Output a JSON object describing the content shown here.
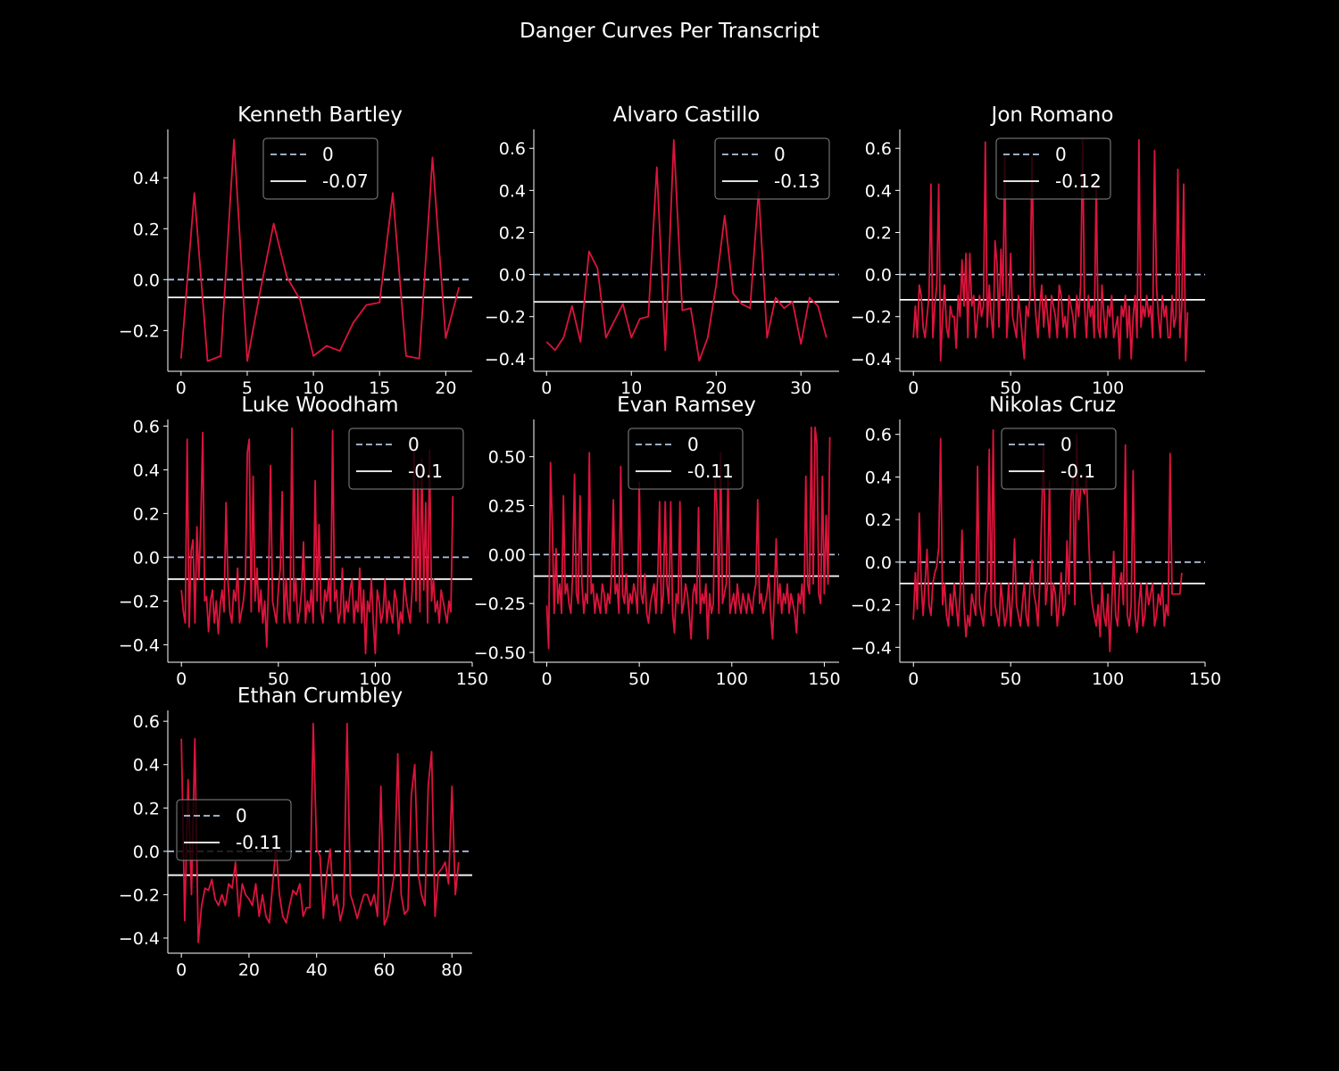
{
  "figure_title": "Danger Curves Per Transcript",
  "colors": {
    "background": "#000000",
    "series": "#dc143c",
    "zero_line": "#b0c4de",
    "mean_line": "#ffffff",
    "axis": "#ffffff",
    "legend_border": "#888888"
  },
  "chart_data": [
    {
      "type": "line",
      "title": "Kenneth Bartley",
      "xlim": [
        -1,
        22
      ],
      "ylim": [
        -0.36,
        0.59
      ],
      "xticks": [
        0,
        5,
        10,
        15,
        20
      ],
      "yticks": [
        -0.2,
        0.0,
        0.2,
        0.4
      ],
      "ytick_labels": [
        "−0.2",
        "0.0",
        "0.2",
        "0.4"
      ],
      "reference_lines": [
        {
          "label": "0",
          "y": 0,
          "style": "dashed"
        },
        {
          "label": "-0.07",
          "y": -0.07,
          "style": "solid"
        }
      ],
      "legend_position": "upper center",
      "series": [
        {
          "values": [
            -0.31,
            0.34,
            -0.32,
            -0.3,
            0.55,
            -0.32,
            -0.04,
            0.22,
            0.01,
            -0.08,
            -0.3,
            -0.26,
            -0.28,
            -0.17,
            -0.1,
            -0.09,
            0.34,
            -0.3,
            -0.31,
            0.48,
            -0.23,
            -0.03
          ]
        }
      ]
    },
    {
      "type": "line",
      "title": "Alvaro Castillo",
      "xlim": [
        -1.5,
        34.5
      ],
      "ylim": [
        -0.46,
        0.69
      ],
      "xticks": [
        0,
        10,
        20,
        30
      ],
      "yticks": [
        -0.4,
        -0.2,
        0.0,
        0.2,
        0.4,
        0.6
      ],
      "ytick_labels": [
        "−0.4",
        "−0.2",
        "0.0",
        "0.2",
        "0.4",
        "0.6"
      ],
      "reference_lines": [
        {
          "label": "0",
          "y": 0,
          "style": "dashed"
        },
        {
          "label": "-0.13",
          "y": -0.13,
          "style": "solid"
        }
      ],
      "legend_position": "upper right",
      "series": [
        {
          "values": [
            -0.32,
            -0.36,
            -0.3,
            -0.15,
            -0.32,
            0.11,
            0.03,
            -0.3,
            -0.22,
            -0.14,
            -0.3,
            -0.21,
            -0.2,
            0.51,
            -0.36,
            0.64,
            -0.17,
            -0.16,
            -0.41,
            -0.3,
            -0.05,
            0.28,
            -0.09,
            -0.14,
            -0.16,
            0.4,
            -0.3,
            -0.11,
            -0.16,
            -0.13,
            -0.33,
            -0.11,
            -0.15,
            -0.3
          ]
        }
      ]
    },
    {
      "type": "line",
      "title": "Jon Romano",
      "xlim": [
        -7,
        150
      ],
      "ylim": [
        -0.46,
        0.69
      ],
      "xticks": [
        0,
        50,
        100
      ],
      "yticks": [
        -0.4,
        -0.2,
        0.0,
        0.2,
        0.4,
        0.6
      ],
      "ytick_labels": [
        "−0.4",
        "−0.2",
        "0.0",
        "0.2",
        "0.4",
        "0.6"
      ],
      "reference_lines": [
        {
          "label": "0",
          "y": 0,
          "style": "dashed"
        },
        {
          "label": "-0.12",
          "y": -0.12,
          "style": "solid"
        }
      ],
      "legend_position": "upper left",
      "series": [
        {
          "values": [
            -0.3,
            -0.15,
            -0.3,
            -0.05,
            -0.1,
            -0.25,
            -0.3,
            -0.2,
            -0.1,
            0.43,
            -0.3,
            -0.15,
            -0.05,
            0.43,
            -0.41,
            -0.2,
            -0.05,
            -0.25,
            -0.3,
            -0.15,
            -0.2,
            -0.2,
            -0.35,
            -0.1,
            -0.2,
            0.07,
            -0.15,
            0.1,
            -0.3,
            0.1,
            -0.15,
            -0.1,
            -0.3,
            -0.2,
            -0.1,
            -0.2,
            -0.15,
            0.63,
            -0.25,
            -0.05,
            -0.2,
            -0.3,
            0.16,
            0.05,
            -0.25,
            0.12,
            -0.1,
            0.57,
            -0.3,
            -0.15,
            0.1,
            -0.2,
            -0.25,
            -0.3,
            -0.1,
            -0.2,
            -0.3,
            -0.4,
            -0.15,
            -0.2,
            -0.1,
            0.56,
            -0.05,
            -0.2,
            -0.3,
            -0.15,
            -0.05,
            -0.25,
            -0.1,
            -0.2,
            -0.3,
            -0.1,
            -0.15,
            -0.2,
            -0.3,
            -0.05,
            -0.1,
            -0.25,
            -0.2,
            -0.3,
            -0.1,
            -0.15,
            -0.2,
            -0.3,
            -0.1,
            -0.2,
            -0.05,
            0.64,
            -0.15,
            -0.3,
            -0.1,
            -0.2,
            -0.15,
            -0.3,
            0.43,
            -0.25,
            -0.3,
            -0.05,
            -0.2,
            -0.3,
            -0.15,
            -0.2,
            -0.1,
            -0.3,
            -0.25,
            -0.2,
            -0.4,
            -0.15,
            -0.2,
            -0.1,
            -0.3,
            -0.15,
            -0.4,
            -0.2,
            -0.1,
            -0.3,
            0.64,
            -0.25,
            -0.15,
            -0.2,
            -0.1,
            -0.2,
            -0.15,
            -0.3,
            0.59,
            -0.05,
            -0.2,
            -0.3,
            -0.1,
            -0.2,
            -0.15,
            -0.3,
            -0.3,
            -0.1,
            -0.25,
            -0.2,
            0.5,
            -0.3,
            -0.15,
            0.43,
            -0.41,
            -0.18
          ]
        }
      ]
    },
    {
      "type": "line",
      "title": "Luke Woodham",
      "xlim": [
        -7,
        150
      ],
      "ylim": [
        -0.48,
        0.63
      ],
      "xticks": [
        0,
        50,
        100,
        150
      ],
      "yticks": [
        -0.4,
        -0.2,
        0.0,
        0.2,
        0.4,
        0.6
      ],
      "ytick_labels": [
        "−0.4",
        "−0.2",
        "0.0",
        "0.2",
        "0.4",
        "0.6"
      ],
      "reference_lines": [
        {
          "label": "0",
          "y": 0,
          "style": "dashed"
        },
        {
          "label": "-0.1",
          "y": -0.1,
          "style": "solid"
        }
      ],
      "legend_position": "upper right",
      "series": [
        {
          "values": [
            -0.15,
            -0.25,
            -0.3,
            0.54,
            -0.32,
            0.03,
            0.08,
            -0.3,
            0.14,
            -0.1,
            0.15,
            0.57,
            -0.2,
            -0.18,
            -0.34,
            -0.2,
            -0.15,
            -0.3,
            -0.2,
            -0.35,
            -0.22,
            -0.15,
            -0.25,
            0.25,
            -0.1,
            -0.25,
            -0.3,
            -0.15,
            -0.2,
            -0.05,
            -0.3,
            -0.25,
            -0.2,
            -0.1,
            0.48,
            0.54,
            -0.25,
            0.37,
            -0.2,
            -0.05,
            -0.25,
            -0.15,
            -0.3,
            -0.2,
            -0.41,
            -0.1,
            0.42,
            -0.2,
            -0.25,
            -0.3,
            -0.15,
            -0.05,
            0.3,
            -0.3,
            -0.1,
            -0.25,
            -0.3,
            0.59,
            -0.2,
            -0.1,
            -0.3,
            -0.25,
            -0.15,
            0.07,
            -0.3,
            -0.2,
            -0.25,
            -0.15,
            -0.3,
            0.35,
            -0.2,
            0.15,
            -0.25,
            -0.3,
            -0.15,
            -0.2,
            -0.1,
            -0.25,
            0.58,
            -0.2,
            -0.15,
            -0.3,
            -0.25,
            -0.05,
            -0.3,
            -0.2,
            -0.25,
            -0.15,
            -0.1,
            -0.3,
            -0.2,
            -0.25,
            -0.05,
            -0.3,
            -0.15,
            -0.44,
            -0.2,
            -0.25,
            -0.1,
            -0.3,
            -0.44,
            -0.15,
            -0.2,
            -0.3,
            -0.25,
            -0.1,
            -0.3,
            -0.2,
            -0.25,
            -0.3,
            -0.15,
            -0.2,
            -0.35,
            -0.25,
            -0.3,
            -0.1,
            -0.2,
            -0.25,
            -0.3,
            -0.15,
            0.5,
            -0.2,
            0.35,
            -0.25,
            0.45,
            -0.15,
            0.25,
            -0.3,
            0.49,
            -0.2,
            -0.1,
            -0.25,
            -0.2,
            -0.3,
            -0.15,
            -0.2,
            -0.25,
            -0.3,
            -0.2,
            -0.25,
            0.28
          ]
        }
      ]
    },
    {
      "type": "line",
      "title": "Evan Ramsey",
      "xlim": [
        -7,
        158
      ],
      "ylim": [
        -0.55,
        0.69
      ],
      "xticks": [
        0,
        50,
        100,
        150
      ],
      "yticks": [
        -0.5,
        -0.25,
        0.0,
        0.25,
        0.5
      ],
      "ytick_labels": [
        "−0.50",
        "−0.25",
        "0.00",
        "0.25",
        "0.50"
      ],
      "reference_lines": [
        {
          "label": "0",
          "y": 0,
          "style": "dashed"
        },
        {
          "label": "-0.11",
          "y": -0.11,
          "style": "solid"
        }
      ],
      "legend_position": "upper center",
      "series": [
        {
          "values": [
            -0.26,
            -0.48,
            0.47,
            0.15,
            -0.3,
            0.03,
            -0.25,
            -0.15,
            -0.3,
            0.3,
            -0.2,
            -0.15,
            -0.25,
            -0.3,
            -0.1,
            0.41,
            -0.2,
            -0.25,
            0.3,
            -0.15,
            -0.3,
            -0.2,
            -0.25,
            0.52,
            -0.2,
            -0.15,
            -0.3,
            -0.2,
            -0.25,
            -0.3,
            -0.15,
            -0.2,
            -0.3,
            -0.2,
            -0.25,
            -0.1,
            0.28,
            -0.2,
            -0.15,
            -0.3,
            0.45,
            -0.2,
            -0.25,
            -0.1,
            -0.3,
            -0.2,
            -0.25,
            -0.15,
            -0.2,
            -0.3,
            0.37,
            -0.2,
            -0.25,
            -0.1,
            -0.3,
            -0.35,
            -0.25,
            -0.2,
            -0.15,
            -0.3,
            -0.1,
            0.27,
            -0.3,
            -0.2,
            0.27,
            -0.15,
            -0.25,
            0.27,
            -0.3,
            -0.4,
            -0.2,
            -0.25,
            0.27,
            -0.3,
            -0.25,
            -0.15,
            -0.2,
            -0.3,
            -0.43,
            -0.2,
            -0.15,
            -0.25,
            0.24,
            -0.3,
            -0.2,
            -0.25,
            -0.15,
            -0.43,
            -0.2,
            -0.3,
            -0.25,
            0.4,
            0.23,
            -0.3,
            0.52,
            -0.25,
            -0.2,
            -0.15,
            0.4,
            -0.3,
            -0.25,
            -0.2,
            -0.3,
            -0.15,
            -0.25,
            -0.3,
            -0.2,
            -0.25,
            -0.3,
            -0.2,
            -0.25,
            -0.3,
            -0.2,
            -0.15,
            0.28,
            -0.25,
            -0.2,
            -0.3,
            -0.25,
            -0.2,
            -0.1,
            -0.3,
            -0.43,
            -0.2,
            0.08,
            -0.25,
            -0.15,
            -0.3,
            -0.2,
            -0.25,
            -0.15,
            -0.3,
            -0.2,
            -0.25,
            -0.3,
            -0.4,
            -0.2,
            -0.25,
            -0.15,
            -0.3,
            0.4,
            -0.15,
            -0.2,
            0.65,
            -0.15,
            0.65,
            0.57,
            -0.2,
            -0.25,
            0.4,
            -0.2,
            0.2,
            -0.15,
            0.6
          ]
        }
      ]
    },
    {
      "type": "line",
      "title": "Nikolas Cruz",
      "xlim": [
        -7,
        150
      ],
      "ylim": [
        -0.47,
        0.67
      ],
      "xticks": [
        0,
        50,
        100,
        150
      ],
      "yticks": [
        -0.4,
        -0.2,
        0.0,
        0.2,
        0.4,
        0.6
      ],
      "ytick_labels": [
        "−0.4",
        "−0.2",
        "0.0",
        "0.2",
        "0.4",
        "0.6"
      ],
      "reference_lines": [
        {
          "label": "0",
          "y": 0,
          "style": "dashed"
        },
        {
          "label": "-0.1",
          "y": -0.1,
          "style": "solid"
        }
      ],
      "legend_position": "upper left",
      "series": [
        {
          "values": [
            -0.27,
            -0.05,
            -0.22,
            0.23,
            -0.1,
            -0.25,
            -0.1,
            0.06,
            -0.2,
            -0.25,
            -0.1,
            -0.05,
            -0.02,
            0.07,
            0.58,
            -0.2,
            -0.1,
            -0.25,
            -0.3,
            -0.15,
            -0.25,
            -0.1,
            -0.2,
            -0.3,
            -0.15,
            0.15,
            -0.2,
            -0.35,
            -0.25,
            -0.3,
            -0.15,
            -0.2,
            -0.25,
            0.45,
            -0.2,
            -0.25,
            -0.3,
            -0.15,
            -0.1,
            0.53,
            -0.25,
            0.62,
            -0.2,
            -0.25,
            -0.3,
            -0.1,
            -0.2,
            -0.3,
            -0.25,
            -0.1,
            -0.3,
            -0.15,
            0.11,
            -0.2,
            -0.25,
            -0.3,
            -0.2,
            -0.1,
            -0.25,
            -0.3,
            -0.1,
            0.01,
            -0.15,
            -0.2,
            -0.3,
            -0.1,
            0.24,
            0.55,
            -0.2,
            -0.1,
            0.38,
            -0.25,
            -0.1,
            -0.15,
            -0.3,
            -0.2,
            -0.05,
            -0.25,
            -0.2,
            0.1,
            -0.15,
            0.3,
            0.4,
            -0.2,
            0.6,
            0.2,
            0.35,
            0.35,
            0.32,
            0.4,
            0.15,
            -0.1,
            -0.2,
            -0.25,
            -0.3,
            -0.2,
            -0.35,
            -0.1,
            -0.25,
            -0.3,
            -0.15,
            -0.42,
            -0.2,
            0.05,
            -0.25,
            -0.3,
            -0.1,
            -0.05,
            -0.2,
            0.55,
            -0.25,
            -0.3,
            -0.2,
            0.43,
            -0.25,
            -0.33,
            -0.2,
            -0.1,
            -0.3,
            -0.25,
            -0.1,
            -0.2,
            -0.15,
            -0.1,
            -0.3,
            -0.25,
            -0.15,
            -0.2,
            -0.1,
            -0.3,
            -0.2,
            -0.25,
            0.51,
            -0.15,
            -0.15,
            -0.15,
            -0.15,
            -0.15,
            -0.05
          ]
        }
      ]
    },
    {
      "type": "line",
      "title": "Ethan Crumbley",
      "xlim": [
        -4,
        86
      ],
      "ylim": [
        -0.47,
        0.65
      ],
      "xticks": [
        0,
        20,
        40,
        60,
        80
      ],
      "yticks": [
        -0.4,
        -0.2,
        0.0,
        0.2,
        0.4,
        0.6
      ],
      "ytick_labels": [
        "−0.4",
        "−0.2",
        "0.0",
        "0.2",
        "0.4",
        "0.6"
      ],
      "reference_lines": [
        {
          "label": "0",
          "y": 0,
          "style": "dashed"
        },
        {
          "label": "-0.11",
          "y": -0.11,
          "style": "solid"
        }
      ],
      "legend_position": "center left",
      "series": [
        {
          "values": [
            0.52,
            -0.32,
            0.33,
            -0.2,
            0.52,
            -0.42,
            -0.25,
            -0.17,
            -0.18,
            -0.13,
            -0.22,
            -0.25,
            -0.2,
            -0.25,
            -0.15,
            -0.17,
            -0.05,
            -0.3,
            -0.15,
            -0.2,
            -0.22,
            -0.25,
            -0.15,
            -0.3,
            -0.2,
            -0.3,
            -0.33,
            -0.15,
            0.02,
            -0.2,
            -0.3,
            -0.33,
            -0.25,
            -0.18,
            -0.2,
            -0.15,
            -0.3,
            -0.26,
            -0.26,
            0.59,
            0.01,
            -0.02,
            -0.31,
            -0.1,
            0.01,
            -0.25,
            -0.2,
            -0.32,
            -0.25,
            0.59,
            -0.2,
            -0.25,
            -0.31,
            -0.25,
            -0.2,
            -0.2,
            -0.25,
            -0.2,
            -0.3,
            0.3,
            -0.34,
            -0.3,
            -0.2,
            -0.1,
            0.45,
            -0.2,
            -0.29,
            -0.27,
            0.26,
            0.4,
            -0.1,
            -0.2,
            -0.25,
            0.3,
            0.46,
            -0.3,
            -0.1,
            -0.08,
            -0.05,
            -0.15,
            0.3,
            -0.2,
            -0.05
          ]
        }
      ]
    }
  ]
}
